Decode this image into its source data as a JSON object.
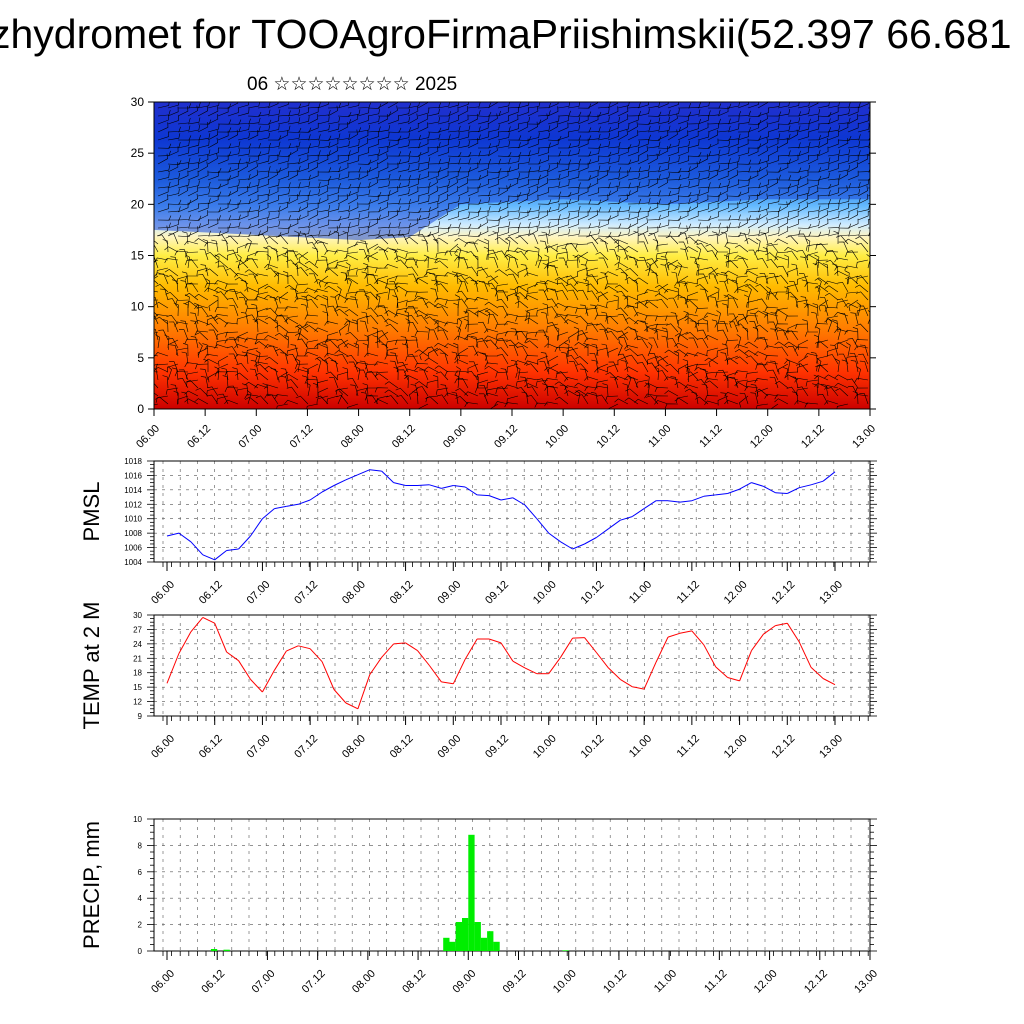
{
  "header": {
    "title": "zhydromet for TOOAgroFirmaPriishimskii(52.397 66.681",
    "subtitle": "06 ☆☆☆☆☆☆☆☆ 2025"
  },
  "time_labels": [
    "06.00",
    "06.12",
    "07.00",
    "07.12",
    "08.00",
    "08.12",
    "09.00",
    "09.12",
    "10.00",
    "10.12",
    "11.00",
    "11.12",
    "12.00",
    "12.12",
    "13.00"
  ],
  "colors": {
    "pressure_line": "#0000ff",
    "temperature_line": "#ff0000",
    "precip_bar": "#00ee00",
    "precip_outline": "#008800"
  },
  "chart_data": [
    {
      "type": "heatmap",
      "title": "",
      "ylabel": "",
      "ylim": [
        0,
        30
      ],
      "y_ticks": [
        0,
        5,
        10,
        15,
        20,
        25,
        30
      ],
      "x_tick_labels_ref": "time_labels",
      "colormap": [
        "#cc0000",
        "#ff3300",
        "#ff7700",
        "#ffbb00",
        "#ffee44",
        "#fff5c0",
        "#d0ecff",
        "#66bbff",
        "#1f6fe0",
        "#0022cc",
        "#2a10c0"
      ],
      "freezing_level_km": {
        "x": [
          "06.00",
          "07.00",
          "08.00",
          "08.12",
          "09.00",
          "10.00",
          "11.00",
          "12.00",
          "13.00"
        ],
        "values": [
          17.5,
          17.0,
          16.5,
          16.8,
          20.0,
          20.5,
          20.0,
          20.5,
          20.5
        ]
      },
      "overlay": "wind barbs"
    },
    {
      "type": "line",
      "ylabel": "PMSL",
      "ylim": [
        1004,
        1018
      ],
      "y_ticks": [
        1004,
        1006,
        1008,
        1010,
        1012,
        1014,
        1016,
        1018
      ],
      "x_tick_labels_ref": "time_labels",
      "grid": true,
      "series": [
        {
          "values": [
            1007.6,
            1008.0,
            1006.8,
            1005.0,
            1004.3,
            1005.6,
            1005.8,
            1007.6,
            1010.0,
            1011.4,
            1011.7,
            1012.0,
            1012.6,
            1013.7,
            1014.6,
            1015.4,
            1016.1,
            1016.8,
            1016.6,
            1015.0,
            1014.6,
            1014.6,
            1014.7,
            1014.2,
            1014.6,
            1014.4,
            1013.3,
            1013.2,
            1012.6,
            1012.9,
            1011.9,
            1010.0,
            1008.0,
            1006.8,
            1005.8,
            1006.5,
            1007.4,
            1008.6,
            1009.8,
            1010.3,
            1011.4,
            1012.5,
            1012.5,
            1012.3,
            1012.5,
            1013.1,
            1013.3,
            1013.5,
            1014.1,
            1015.0,
            1014.5,
            1013.6,
            1013.5,
            1014.3,
            1014.7,
            1015.2,
            1016.5
          ]
        }
      ]
    },
    {
      "type": "line",
      "ylabel": "TEMP at 2 M",
      "ylim": [
        9,
        30
      ],
      "y_ticks": [
        9,
        12,
        15,
        18,
        21,
        24,
        27,
        30
      ],
      "x_tick_labels_ref": "time_labels",
      "grid": true,
      "series": [
        {
          "values": [
            15.8,
            22.0,
            26.5,
            29.5,
            28.3,
            22.3,
            20.5,
            16.6,
            14.0,
            18.5,
            22.5,
            23.6,
            23.0,
            20.3,
            14.5,
            11.7,
            10.5,
            17.6,
            21.2,
            24.0,
            24.2,
            22.6,
            19.5,
            16.1,
            15.7,
            20.8,
            25.0,
            25.0,
            24.2,
            20.4,
            19.0,
            17.8,
            17.8,
            21.2,
            25.2,
            25.3,
            22.2,
            19.0,
            16.6,
            15.1,
            14.6,
            20.2,
            25.4,
            26.2,
            26.7,
            23.8,
            19.2,
            17.0,
            16.3,
            22.6,
            26.0,
            27.8,
            28.3,
            24.4,
            19.1,
            16.8,
            15.5
          ]
        }
      ]
    },
    {
      "type": "bar",
      "ylabel": "PRECIP, mm",
      "ylim": [
        0,
        10
      ],
      "y_ticks": [
        0,
        2,
        4,
        6,
        8,
        10
      ],
      "x_tick_labels_ref": "time_labels",
      "grid": true,
      "bar_width_hours": 3,
      "start_hour": 0,
      "values": [
        0,
        0,
        0,
        0,
        0,
        0,
        0,
        0.15,
        0,
        0.1,
        0,
        0,
        0,
        0,
        0,
        0,
        0,
        0,
        0,
        0,
        0,
        0,
        0,
        0,
        0,
        0,
        0,
        0,
        0,
        0,
        0,
        0,
        0,
        0,
        0,
        0,
        0,
        0,
        0,
        0,
        0,
        0,
        0,
        0,
        1.0,
        0.7,
        2.2,
        2.5,
        8.8,
        2.2,
        1.0,
        1.5,
        0.7,
        0,
        0,
        0,
        0,
        0,
        0,
        0,
        0,
        0,
        0,
        0.05,
        0,
        0,
        0,
        0,
        0,
        0,
        0,
        0,
        0,
        0,
        0,
        0,
        0,
        0,
        0,
        0,
        0,
        0,
        0,
        0,
        0,
        0,
        0,
        0,
        0,
        0,
        0,
        0,
        0,
        0,
        0,
        0,
        0,
        0,
        0,
        0,
        0,
        0,
        0,
        0,
        0,
        0,
        0,
        0,
        0,
        0,
        0
      ]
    }
  ]
}
